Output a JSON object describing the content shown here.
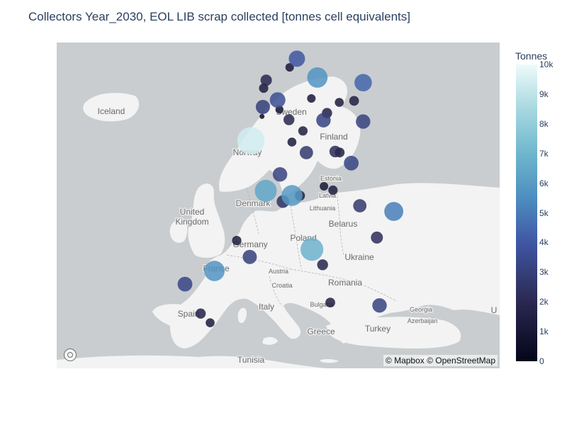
{
  "title": "Collectors Year_2030, EOL LIB scrap collected [tonnes cell equivalents]",
  "colorbar": {
    "title": "Tonnes",
    "min": 0,
    "max": 10000,
    "ticks": [
      {
        "value": 0,
        "label": "0"
      },
      {
        "value": 1000,
        "label": "1k"
      },
      {
        "value": 2000,
        "label": "2k"
      },
      {
        "value": 3000,
        "label": "3k"
      },
      {
        "value": 4000,
        "label": "4k"
      },
      {
        "value": 5000,
        "label": "5k"
      },
      {
        "value": 6000,
        "label": "6k"
      },
      {
        "value": 7000,
        "label": "7k"
      },
      {
        "value": 8000,
        "label": "8k"
      },
      {
        "value": 9000,
        "label": "9k"
      },
      {
        "value": 10000,
        "label": "10k"
      }
    ],
    "colorscale": [
      "#03051a",
      "#2b2851",
      "#3f57a4",
      "#4d8ec0",
      "#6fb6cd",
      "#a7d8e0",
      "#eefafb"
    ]
  },
  "map_labels": {
    "iceland": "Iceland",
    "sweden": "Sweden",
    "finland": "Finland",
    "norway": "Norway",
    "estonia": "Estonia",
    "latvia": "Latvia",
    "lithuania": "Lithuania",
    "denmark": "Denmark",
    "united_kingdom": [
      "United",
      "Kingdom"
    ],
    "belarus": "Belarus",
    "germany": "Germany",
    "poland": "Poland",
    "ukraine": "Ukraine",
    "france": "France",
    "austria": "Austria",
    "croatia": "Croatia",
    "romania": "Romania",
    "bulgaria": "Bulgaria",
    "italy": "Italy",
    "spain": "Spain",
    "georgia": "Georgia",
    "azerbaijan": "Azerbaijan",
    "greece": "Greece",
    "turkey": "Turkey",
    "tunisia": "Tunisia",
    "edge_u": "U"
  },
  "attribution": "© Mapbox © OpenStreetMap",
  "chart_data": {
    "type": "scatter",
    "map": "bubble map of Europe (Mapbox basemap)",
    "color_metric": "Tonnes",
    "color_range": [
      0,
      10000
    ],
    "points": [
      {
        "lon": 10.75,
        "lat": 59.91,
        "value": 1500
      },
      {
        "lon": 18.07,
        "lat": 59.33,
        "value": 1800
      },
      {
        "lon": 24.94,
        "lat": 60.17,
        "value": 1200
      },
      {
        "lon": 24.75,
        "lat": 59.44,
        "value": 300
      },
      {
        "lon": 24.1,
        "lat": 56.95,
        "value": 400
      },
      {
        "lon": 25.28,
        "lat": 54.69,
        "value": 600
      },
      {
        "lon": 10.2,
        "lat": 56.15,
        "value": 1300
      },
      {
        "lon": 12.57,
        "lat": 55.68,
        "value": 1400
      },
      {
        "lon": 4.9,
        "lat": 52.37,
        "value": 1600
      },
      {
        "lon": 4.48,
        "lat": 51.92,
        "value": 1100
      },
      {
        "lon": 4.35,
        "lat": 50.85,
        "value": 2500
      },
      {
        "lon": 6.8,
        "lat": 51.25,
        "value": 3000
      },
      {
        "lon": 8.8,
        "lat": 53.08,
        "value": 900
      },
      {
        "lon": 10.0,
        "lat": 53.55,
        "value": 3300
      },
      {
        "lon": 7.1,
        "lat": 50.7,
        "value": 800
      },
      {
        "lon": 13.4,
        "lat": 52.52,
        "value": 5200
      },
      {
        "lon": 17.04,
        "lat": 51.11,
        "value": 1000
      },
      {
        "lon": 21.01,
        "lat": 52.23,
        "value": 3800
      },
      {
        "lon": 19.5,
        "lat": 51.2,
        "value": 1200
      },
      {
        "lon": 15.0,
        "lat": 50.5,
        "value": 1300
      },
      {
        "lon": 12.4,
        "lat": 51.34,
        "value": 900
      },
      {
        "lon": 14.42,
        "lat": 50.08,
        "value": 2600
      },
      {
        "lon": 8.68,
        "lat": 50.11,
        "value": 1500
      },
      {
        "lon": 11.0,
        "lat": 49.45,
        "value": 1100
      },
      {
        "lon": 9.18,
        "lat": 48.78,
        "value": 1000
      },
      {
        "lon": 11.58,
        "lat": 48.14,
        "value": 2200
      },
      {
        "lon": 16.37,
        "lat": 48.21,
        "value": 1700
      },
      {
        "lon": 17.11,
        "lat": 48.15,
        "value": 1200
      },
      {
        "lon": 21.0,
        "lat": 50.0,
        "value": 2600
      },
      {
        "lon": 19.04,
        "lat": 47.5,
        "value": 2700
      },
      {
        "lon": 2.35,
        "lat": 48.86,
        "value": 9300
      },
      {
        "lon": 7.2,
        "lat": 46.8,
        "value": 2600
      },
      {
        "lon": 9.19,
        "lat": 45.46,
        "value": 5500
      },
      {
        "lon": 10.5,
        "lat": 45.45,
        "value": 1300
      },
      {
        "lon": 7.68,
        "lat": 45.07,
        "value": 2000
      },
      {
        "lon": 14.5,
        "lat": 46.05,
        "value": 900
      },
      {
        "lon": 16.0,
        "lat": 45.8,
        "value": 1100
      },
      {
        "lon": 26.1,
        "lat": 44.43,
        "value": 4500
      },
      {
        "lon": 23.3,
        "lat": 42.7,
        "value": 1800
      },
      {
        "lon": 20.46,
        "lat": 44.8,
        "value": 2200
      },
      {
        "lon": 4.83,
        "lat": 45.76,
        "value": 6000
      },
      {
        "lon": 12.5,
        "lat": 41.9,
        "value": 6500
      },
      {
        "lon": 14.27,
        "lat": 40.85,
        "value": 1500
      },
      {
        "lon": 15.55,
        "lat": 38.19,
        "value": 1200
      },
      {
        "lon": 2.17,
        "lat": 41.39,
        "value": 2500
      },
      {
        "lon": 0.0,
        "lat": 42.5,
        "value": 1100
      },
      {
        "lon": -3.7,
        "lat": 40.42,
        "value": 5200
      },
      {
        "lon": -8.6,
        "lat": 39.5,
        "value": 2700
      },
      {
        "lon": -6.0,
        "lat": 37.39,
        "value": 1300
      },
      {
        "lon": -4.42,
        "lat": 36.72,
        "value": 1000
      },
      {
        "lon": 23.73,
        "lat": 37.98,
        "value": 2600
      },
      {
        "lon": 4.2,
        "lat": 50.3,
        "value": 300
      }
    ]
  }
}
